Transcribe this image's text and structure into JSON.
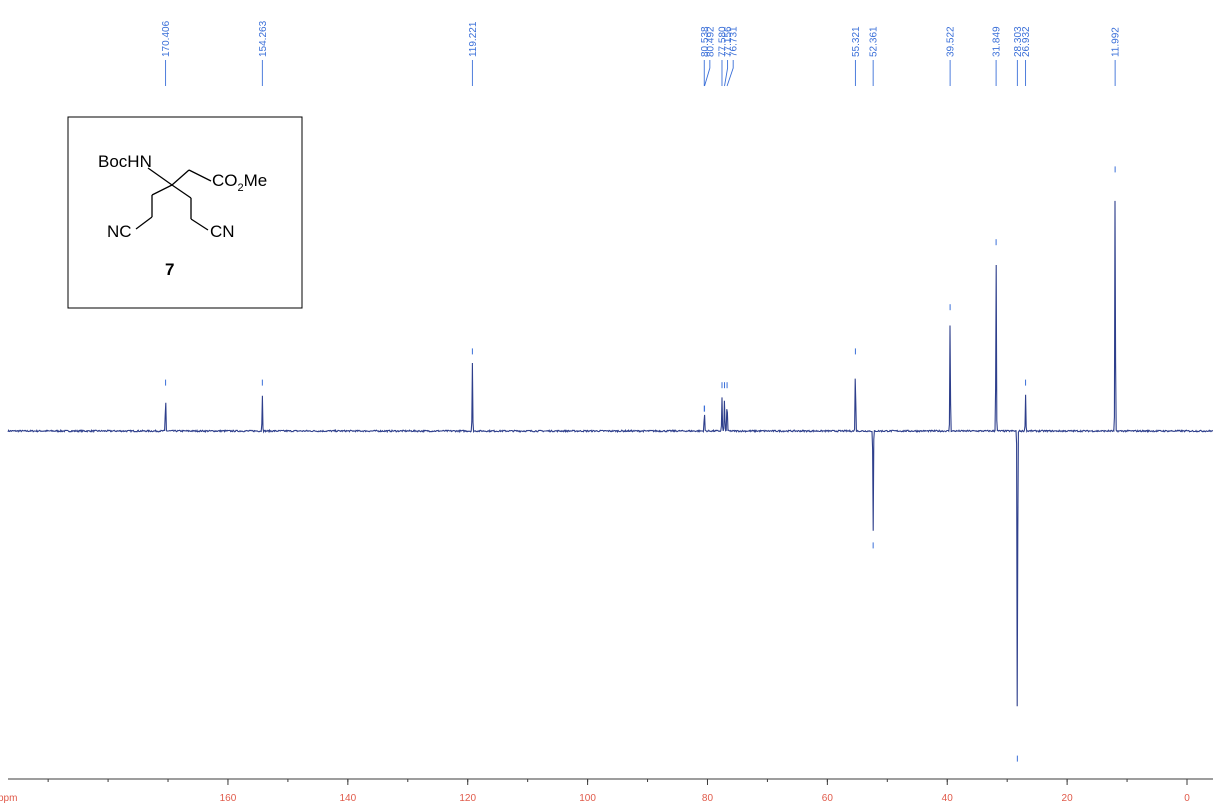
{
  "chart_data": {
    "type": "line",
    "title": "",
    "xlabel": "ppm",
    "ylabel": "",
    "xlim": [
      203,
      -5
    ],
    "ylim": [
      -1.3,
      1.0
    ],
    "grid": false,
    "colors": {
      "spectrum": "#2e3f8c",
      "peak_label": "#3a6fd8",
      "axis": "#3b3b3b",
      "tick_label": "#e05a4a"
    },
    "x_ticks": [
      {
        "value": 160,
        "label": "160"
      },
      {
        "value": 140,
        "label": "140"
      },
      {
        "value": 120,
        "label": "120"
      },
      {
        "value": 100,
        "label": "100"
      },
      {
        "value": 80,
        "label": "80"
      },
      {
        "value": 60,
        "label": "60"
      },
      {
        "value": 40,
        "label": "40"
      },
      {
        "value": 20,
        "label": "20"
      },
      {
        "value": 0,
        "label": "0"
      }
    ],
    "peaks": [
      {
        "ppm": 170.406,
        "label": "170.406",
        "intensity": 0.14
      },
      {
        "ppm": 154.263,
        "label": "154.263",
        "intensity": 0.14
      },
      {
        "ppm": 119.221,
        "label": "119.221",
        "intensity": 0.26
      },
      {
        "ppm": 80.538,
        "label": "80.538",
        "intensity": 0.04
      },
      {
        "ppm": 80.492,
        "label": "80.492",
        "intensity": 0.04
      },
      {
        "ppm": 77.58,
        "label": "77.580",
        "intensity": 0.13
      },
      {
        "ppm": 77.156,
        "label": "77.156",
        "intensity": 0.13
      },
      {
        "ppm": 76.731,
        "label": "76.731",
        "intensity": 0.13
      },
      {
        "ppm": 55.321,
        "label": "55.321",
        "intensity": 0.26
      },
      {
        "ppm": 52.361,
        "label": "52.361",
        "intensity": -0.39
      },
      {
        "ppm": 39.522,
        "label": "39.522",
        "intensity": 0.43
      },
      {
        "ppm": 31.849,
        "label": "31.849",
        "intensity": 0.68
      },
      {
        "ppm": 28.303,
        "label": "28.303",
        "intensity": -1.21
      },
      {
        "ppm": 26.932,
        "label": "26.932",
        "intensity": 0.14
      },
      {
        "ppm": 11.992,
        "label": "11.992",
        "intensity": 0.96
      }
    ]
  },
  "structure": {
    "compound_number": "7",
    "labels": {
      "boc": "BocHN",
      "ester_co": "CO",
      "ester_sub": "2",
      "ester_me": "Me",
      "nitrile_left": "NC",
      "nitrile_right": "CN"
    }
  }
}
